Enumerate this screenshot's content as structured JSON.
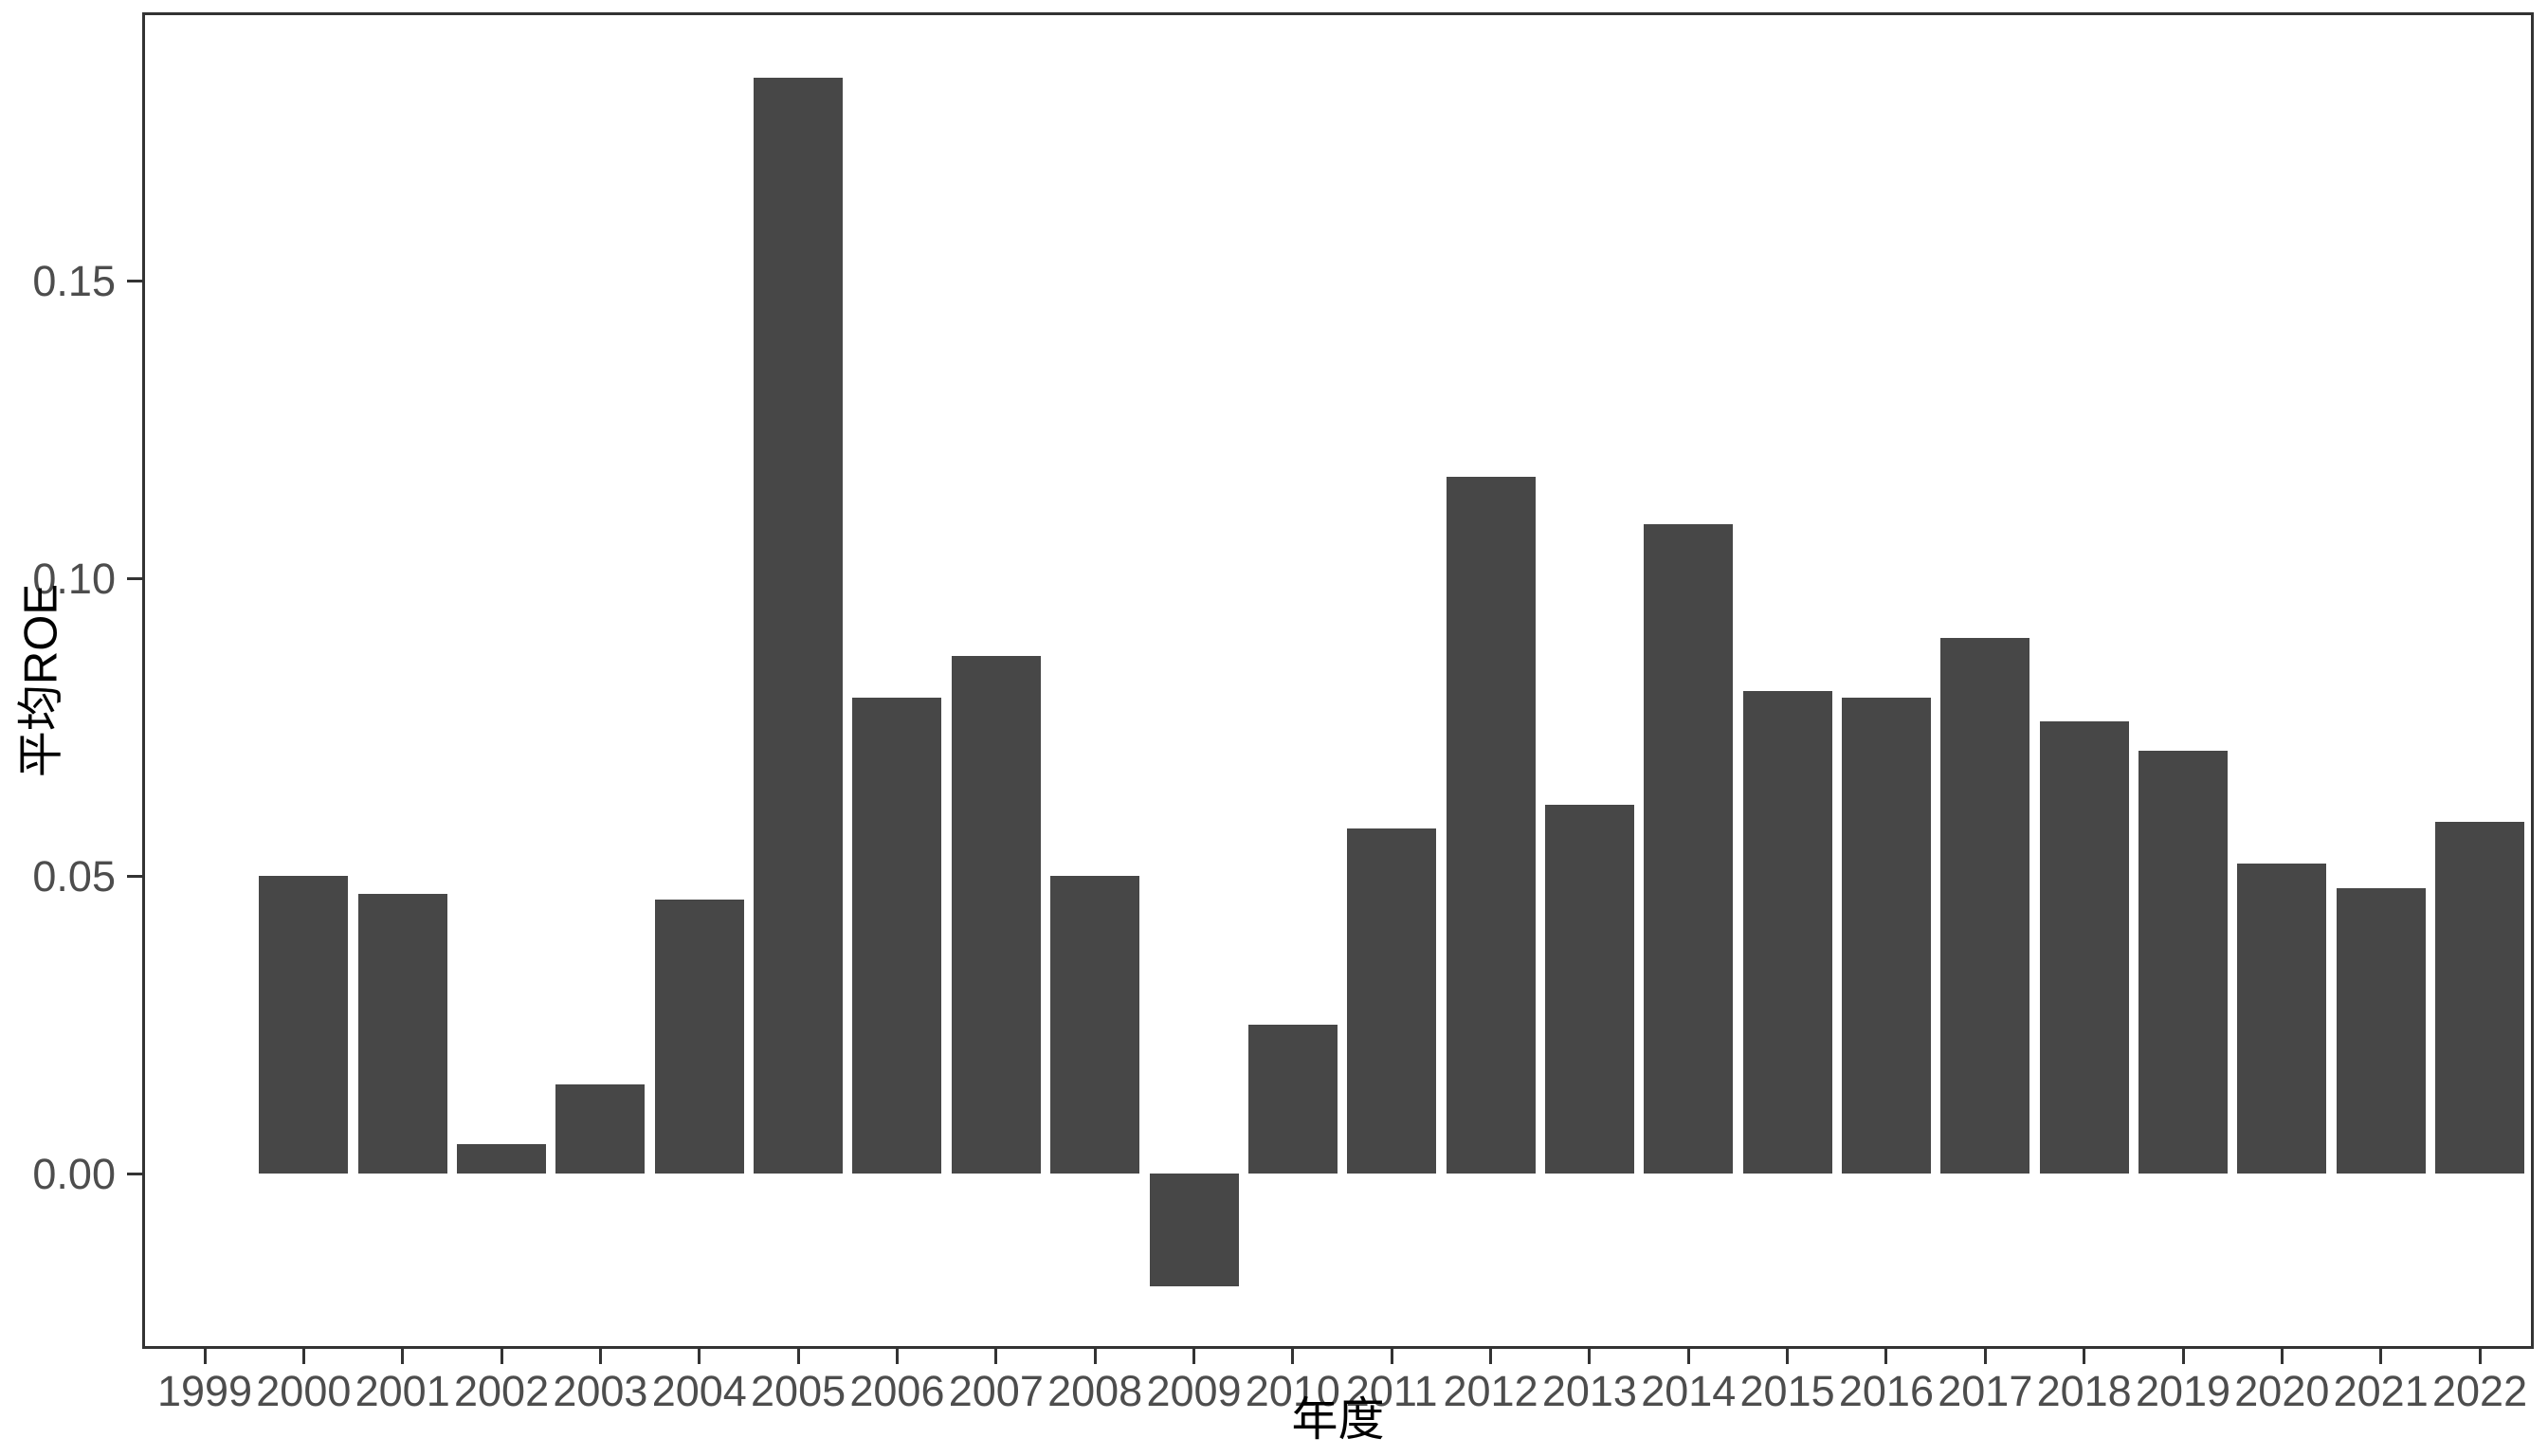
{
  "chart_data": {
    "type": "bar",
    "title": "",
    "xlabel": "年度",
    "ylabel": "平均ROE",
    "categories": [
      1999,
      2000,
      2001,
      2002,
      2003,
      2004,
      2005,
      2006,
      2007,
      2008,
      2009,
      2010,
      2011,
      2012,
      2013,
      2014,
      2015,
      2016,
      2017,
      2018,
      2019,
      2020,
      2021,
      2022
    ],
    "values": [
      null,
      0.05,
      0.047,
      0.005,
      0.015,
      0.046,
      0.184,
      0.08,
      0.087,
      0.05,
      -0.019,
      0.025,
      0.058,
      0.117,
      0.062,
      0.109,
      0.081,
      0.08,
      0.09,
      0.076,
      0.071,
      0.052,
      0.048,
      0.059
    ],
    "y_ticks": [
      {
        "value": 0.0,
        "label": "0.00"
      },
      {
        "value": 0.05,
        "label": "0.05"
      },
      {
        "value": 0.1,
        "label": "0.10"
      },
      {
        "value": 0.15,
        "label": "0.15"
      }
    ],
    "ylim": [
      -0.029,
      0.194
    ],
    "grid": false,
    "legend": false,
    "colors": {
      "bar_fill": "#474747",
      "panel_border": "#333333",
      "tick_label": "#4d4d4d",
      "axis_title": "#000000",
      "background": "#ffffff"
    }
  }
}
